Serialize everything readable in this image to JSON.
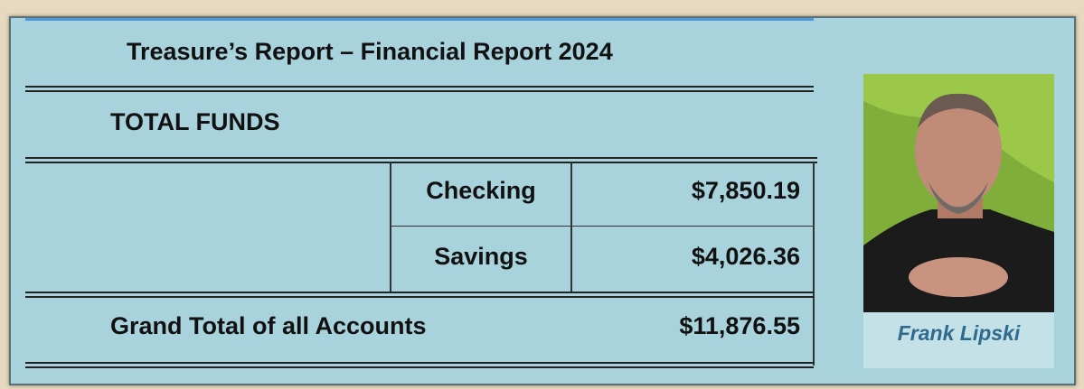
{
  "header": {
    "title": "Treasure’s Report – Financial Report 2024"
  },
  "section": "TOTAL FUNDS",
  "table": {
    "rows": [
      [
        "Checking",
        "$7,850.19"
      ],
      [
        "Savings",
        "$4,026.36"
      ]
    ],
    "total": {
      "label": "Grand Total of all Accounts",
      "value": "$11,876.55"
    }
  },
  "photo": {
    "caption": "Frank Lipski"
  }
}
